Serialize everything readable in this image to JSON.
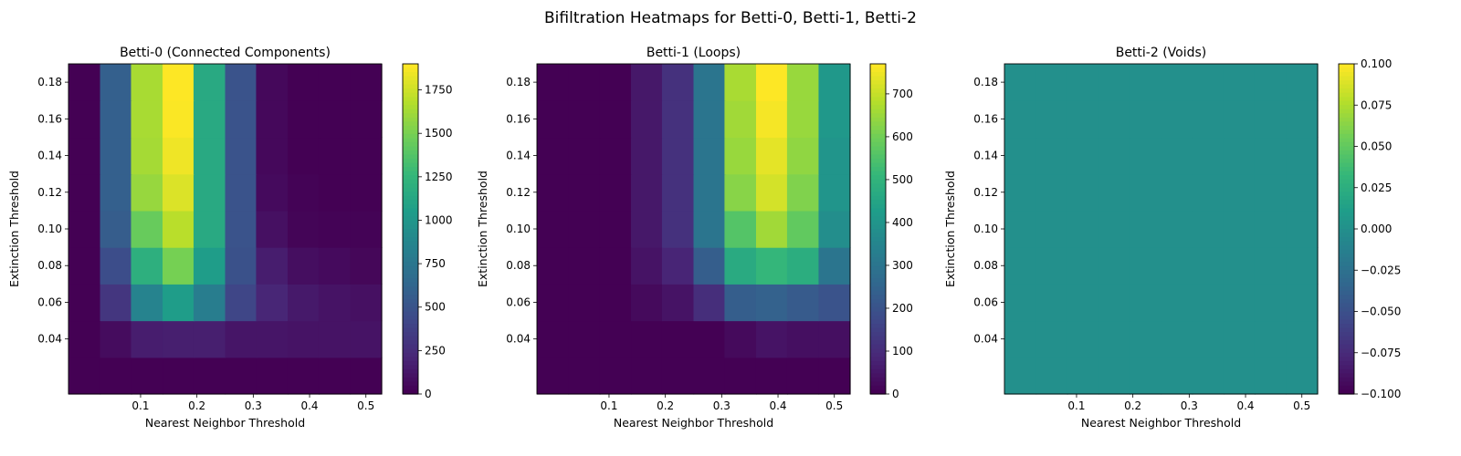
{
  "figure": {
    "title": "Bifiltration Heatmaps for Betti-0, Betti-1, Betti-2"
  },
  "chart_data": [
    {
      "type": "heatmap",
      "title": "Betti-0 (Connected Components)",
      "xlabel": "Nearest Neighbor Threshold",
      "ylabel": "Extinction Threshold",
      "xticks": [
        0.1,
        0.2,
        0.3,
        0.4,
        0.5
      ],
      "yticks": [
        0.04,
        0.06,
        0.08,
        0.1,
        0.12,
        0.14,
        0.16,
        0.18
      ],
      "x": [
        0.0,
        0.056,
        0.111,
        0.167,
        0.222,
        0.278,
        0.333,
        0.389,
        0.444,
        0.5
      ],
      "y": [
        0.02,
        0.04,
        0.06,
        0.08,
        0.1,
        0.12,
        0.14,
        0.16,
        0.18
      ],
      "xlim": [
        0.0,
        0.5
      ],
      "ylim": [
        0.02,
        0.18
      ],
      "colormap": "viridis",
      "colorbar": {
        "min": 0,
        "max": 1900,
        "ticks": [
          0,
          250,
          500,
          750,
          1000,
          1250,
          1500,
          1750
        ]
      },
      "values": [
        [
          0,
          0,
          0,
          0,
          0,
          0,
          0,
          0,
          0,
          0
        ],
        [
          0,
          60,
          150,
          160,
          160,
          110,
          110,
          100,
          100,
          100
        ],
        [
          0,
          300,
          850,
          1050,
          800,
          400,
          200,
          130,
          100,
          80
        ],
        [
          0,
          450,
          1200,
          1500,
          1050,
          480,
          150,
          70,
          50,
          30
        ],
        [
          0,
          560,
          1450,
          1700,
          1150,
          490,
          80,
          20,
          10,
          10
        ],
        [
          0,
          580,
          1600,
          1800,
          1150,
          490,
          50,
          10,
          0,
          0
        ],
        [
          0,
          580,
          1640,
          1860,
          1150,
          490,
          40,
          0,
          0,
          0
        ],
        [
          0,
          580,
          1650,
          1890,
          1150,
          490,
          40,
          0,
          0,
          0
        ],
        [
          0,
          580,
          1650,
          1900,
          1150,
          490,
          40,
          0,
          0,
          0
        ]
      ]
    },
    {
      "type": "heatmap",
      "title": "Betti-1 (Loops)",
      "xlabel": "Nearest Neighbor Threshold",
      "ylabel": "Extinction Threshold",
      "xticks": [
        0.1,
        0.2,
        0.3,
        0.4,
        0.5
      ],
      "yticks": [
        0.04,
        0.06,
        0.08,
        0.1,
        0.12,
        0.14,
        0.16,
        0.18
      ],
      "x": [
        0.0,
        0.056,
        0.111,
        0.167,
        0.222,
        0.278,
        0.333,
        0.389,
        0.444,
        0.5
      ],
      "y": [
        0.02,
        0.04,
        0.06,
        0.08,
        0.1,
        0.12,
        0.14,
        0.16,
        0.18
      ],
      "xlim": [
        0.0,
        0.5
      ],
      "ylim": [
        0.02,
        0.18
      ],
      "colormap": "viridis",
      "colorbar": {
        "min": 0,
        "max": 770,
        "ticks": [
          0,
          100,
          200,
          300,
          400,
          500,
          600,
          700
        ]
      },
      "values": [
        [
          0,
          0,
          0,
          0,
          0,
          0,
          0,
          0,
          0,
          0
        ],
        [
          0,
          0,
          0,
          0,
          0,
          0,
          20,
          40,
          30,
          30
        ],
        [
          0,
          0,
          0,
          20,
          40,
          100,
          230,
          240,
          220,
          200
        ],
        [
          0,
          0,
          0,
          40,
          80,
          230,
          470,
          510,
          480,
          300
        ],
        [
          0,
          0,
          0,
          50,
          110,
          300,
          560,
          660,
          580,
          380
        ],
        [
          0,
          0,
          0,
          50,
          110,
          300,
          630,
          720,
          620,
          400
        ],
        [
          0,
          0,
          0,
          50,
          110,
          300,
          650,
          740,
          640,
          400
        ],
        [
          0,
          0,
          0,
          50,
          110,
          300,
          660,
          760,
          650,
          410
        ],
        [
          0,
          0,
          0,
          50,
          110,
          300,
          670,
          770,
          650,
          410
        ]
      ]
    },
    {
      "type": "heatmap",
      "title": "Betti-2 (Voids)",
      "xlabel": "Nearest Neighbor Threshold",
      "ylabel": "Extinction Threshold",
      "xticks": [
        0.1,
        0.2,
        0.3,
        0.4,
        0.5
      ],
      "yticks": [
        0.04,
        0.06,
        0.08,
        0.1,
        0.12,
        0.14,
        0.16,
        0.18
      ],
      "x": [
        0.0,
        0.056,
        0.111,
        0.167,
        0.222,
        0.278,
        0.333,
        0.389,
        0.444,
        0.5
      ],
      "y": [
        0.02,
        0.04,
        0.06,
        0.08,
        0.1,
        0.12,
        0.14,
        0.16,
        0.18
      ],
      "xlim": [
        0.0,
        0.5
      ],
      "ylim": [
        0.02,
        0.18
      ],
      "colormap": "viridis",
      "colorbar": {
        "min": -0.1,
        "max": 0.1,
        "ticks": [
          -0.1,
          -0.075,
          -0.05,
          -0.025,
          0.0,
          0.025,
          0.05,
          0.075,
          0.1
        ],
        "tick_labels": [
          "−0.100",
          "−0.075",
          "−0.050",
          "−0.025",
          "0.000",
          "0.025",
          "0.050",
          "0.075",
          "0.100"
        ]
      },
      "values": [
        [
          0,
          0,
          0,
          0,
          0,
          0,
          0,
          0,
          0,
          0
        ],
        [
          0,
          0,
          0,
          0,
          0,
          0,
          0,
          0,
          0,
          0
        ],
        [
          0,
          0,
          0,
          0,
          0,
          0,
          0,
          0,
          0,
          0
        ],
        [
          0,
          0,
          0,
          0,
          0,
          0,
          0,
          0,
          0,
          0
        ],
        [
          0,
          0,
          0,
          0,
          0,
          0,
          0,
          0,
          0,
          0
        ],
        [
          0,
          0,
          0,
          0,
          0,
          0,
          0,
          0,
          0,
          0
        ],
        [
          0,
          0,
          0,
          0,
          0,
          0,
          0,
          0,
          0,
          0
        ],
        [
          0,
          0,
          0,
          0,
          0,
          0,
          0,
          0,
          0,
          0
        ],
        [
          0,
          0,
          0,
          0,
          0,
          0,
          0,
          0,
          0,
          0
        ]
      ]
    }
  ]
}
